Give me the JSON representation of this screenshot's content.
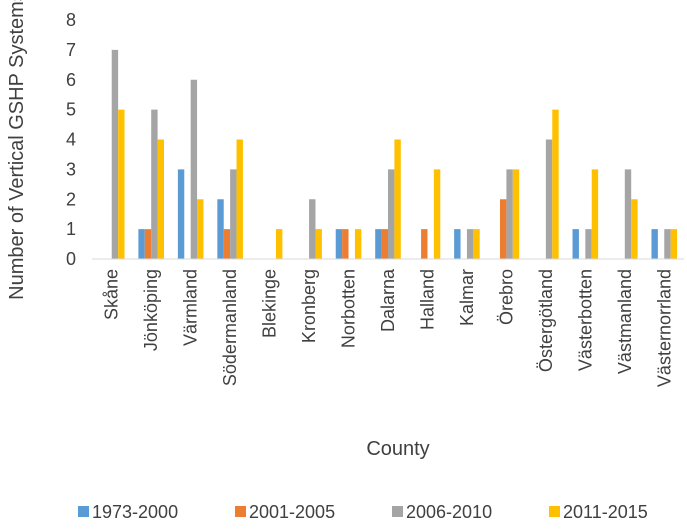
{
  "chart_data": {
    "type": "bar",
    "title": "",
    "xlabel": "County",
    "ylabel": "Number of Vertical GSHP Systems",
    "ylim": [
      0,
      8
    ],
    "yticks": [
      "0",
      "1",
      "2",
      "3",
      "4",
      "5",
      "6",
      "7",
      "8"
    ],
    "grid": false,
    "legend_position": "bottom",
    "categories": [
      "Skåne",
      "Jönköping",
      "Värmland",
      "Södermanland",
      "Blekinge",
      "Kronberg",
      "Norbotten",
      "Dalarna",
      "Halland",
      "Kalmar",
      "Örebro",
      "Östergötland",
      "Västerbotten",
      "Västmanland",
      "Västernorrland"
    ],
    "series": [
      {
        "name": "1973-2000",
        "color": "#5B9BD5",
        "values": [
          0,
          1,
          3,
          2,
          0,
          0,
          1,
          1,
          0,
          1,
          0,
          0,
          1,
          0,
          1
        ]
      },
      {
        "name": "2001-2005",
        "color": "#ED7D31",
        "values": [
          0,
          1,
          0,
          1,
          0,
          0,
          1,
          1,
          1,
          0,
          2,
          0,
          0,
          0,
          0
        ]
      },
      {
        "name": "2006-2010",
        "color": "#A5A5A5",
        "values": [
          7,
          5,
          6,
          3,
          0,
          2,
          0,
          3,
          0,
          1,
          3,
          4,
          1,
          3,
          1
        ]
      },
      {
        "name": "2011-2015",
        "color": "#FFC000",
        "values": [
          5,
          4,
          2,
          4,
          1,
          1,
          1,
          4,
          3,
          1,
          3,
          5,
          3,
          2,
          1
        ]
      }
    ]
  }
}
